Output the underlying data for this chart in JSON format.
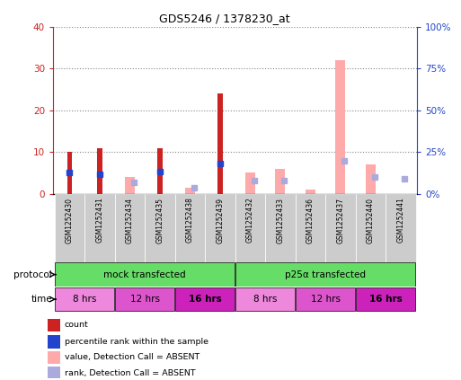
{
  "title": "GDS5246 / 1378230_at",
  "samples": [
    "GSM1252430",
    "GSM1252431",
    "GSM1252434",
    "GSM1252435",
    "GSM1252438",
    "GSM1252439",
    "GSM1252432",
    "GSM1252433",
    "GSM1252436",
    "GSM1252437",
    "GSM1252440",
    "GSM1252441"
  ],
  "count_values": [
    10,
    11,
    null,
    11,
    null,
    24,
    null,
    null,
    null,
    null,
    null,
    null
  ],
  "rank_values": [
    12.5,
    11.5,
    null,
    13.5,
    null,
    18,
    null,
    null,
    null,
    null,
    null,
    null
  ],
  "absent_count_values": [
    null,
    null,
    4,
    null,
    1.5,
    null,
    5,
    6,
    1,
    32,
    7,
    null
  ],
  "absent_rank_values": [
    null,
    null,
    7,
    null,
    3.5,
    null,
    8,
    8,
    null,
    20,
    10,
    9
  ],
  "ylim_left": [
    0,
    40
  ],
  "ylim_right": [
    0,
    100
  ],
  "yticks_left": [
    0,
    10,
    20,
    30,
    40
  ],
  "yticks_right": [
    0,
    25,
    50,
    75,
    100
  ],
  "ytick_labels_left": [
    "0",
    "10",
    "20",
    "30",
    "40"
  ],
  "ytick_labels_right": [
    "0%",
    "25%",
    "50%",
    "75%",
    "100%"
  ],
  "protocol_groups": [
    {
      "label": "mock transfected",
      "start": 0,
      "end": 6,
      "color": "#66dd66"
    },
    {
      "label": "p25α transfected",
      "start": 6,
      "end": 12,
      "color": "#66dd66"
    }
  ],
  "time_groups": [
    {
      "label": "8 hrs",
      "start": 0,
      "end": 2,
      "bold": false
    },
    {
      "label": "12 hrs",
      "start": 2,
      "end": 4,
      "bold": false
    },
    {
      "label": "16 hrs",
      "start": 4,
      "end": 6,
      "bold": true
    },
    {
      "label": "8 hrs",
      "start": 6,
      "end": 8,
      "bold": false
    },
    {
      "label": "12 hrs",
      "start": 8,
      "end": 10,
      "bold": false
    },
    {
      "label": "16 hrs",
      "start": 10,
      "end": 12,
      "bold": true
    }
  ],
  "time_colors": {
    "8 hrs": "#ee88dd",
    "12 hrs": "#dd55cc",
    "16 hrs": "#cc22bb"
  },
  "count_color": "#cc2222",
  "rank_color": "#2244cc",
  "absent_count_color": "#ffaaaa",
  "absent_rank_color": "#aaaadd",
  "grid_color": "#888888",
  "bg_color": "#ffffff",
  "left_tick_color": "#cc2222",
  "right_tick_color": "#2244cc",
  "sample_bg_color": "#cccccc",
  "legend_items": [
    {
      "color": "#cc2222",
      "label": "count"
    },
    {
      "color": "#2244cc",
      "label": "percentile rank within the sample"
    },
    {
      "color": "#ffaaaa",
      "label": "value, Detection Call = ABSENT"
    },
    {
      "color": "#aaaadd",
      "label": "rank, Detection Call = ABSENT"
    }
  ]
}
